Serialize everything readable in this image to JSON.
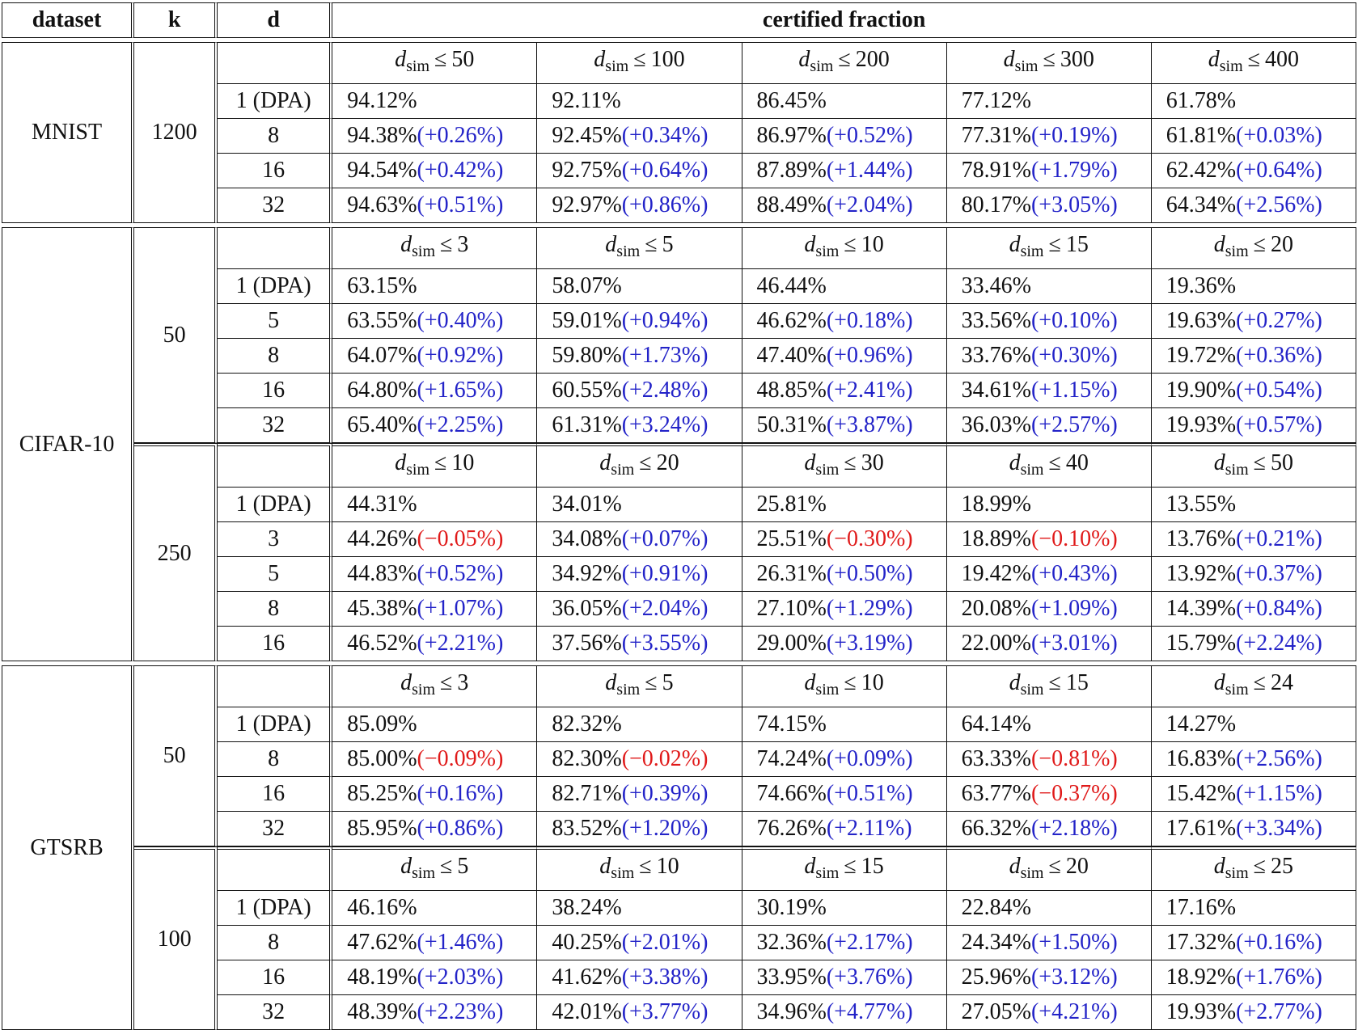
{
  "header": {
    "dataset": "dataset",
    "k": "k",
    "d": "d",
    "certified_fraction": "certified fraction"
  },
  "dsim_symbol": {
    "var": "d",
    "sub": "sim",
    "leq": "≤"
  },
  "colors": {
    "positive": "#2323c8",
    "negative": "#e01a1a",
    "text": "#111111"
  },
  "blocks": [
    {
      "dataset": "MNIST",
      "groups": [
        {
          "k": "1200",
          "thresholds": [
            "50",
            "100",
            "200",
            "300",
            "400"
          ],
          "rows": [
            {
              "d": "1 (DPA)",
              "cells": [
                {
                  "v": "94.12%"
                },
                {
                  "v": "92.11%"
                },
                {
                  "v": "86.45%"
                },
                {
                  "v": "77.12%"
                },
                {
                  "v": "61.78%"
                }
              ]
            },
            {
              "d": "8",
              "cells": [
                {
                  "v": "94.38%",
                  "delta": "(+0.26%)",
                  "sign": "pos"
                },
                {
                  "v": "92.45%",
                  "delta": "(+0.34%)",
                  "sign": "pos"
                },
                {
                  "v": "86.97%",
                  "delta": "(+0.52%)",
                  "sign": "pos"
                },
                {
                  "v": "77.31%",
                  "delta": "(+0.19%)",
                  "sign": "pos"
                },
                {
                  "v": "61.81%",
                  "delta": "(+0.03%)",
                  "sign": "pos"
                }
              ]
            },
            {
              "d": "16",
              "cells": [
                {
                  "v": "94.54%",
                  "delta": "(+0.42%)",
                  "sign": "pos"
                },
                {
                  "v": "92.75%",
                  "delta": "(+0.64%)",
                  "sign": "pos"
                },
                {
                  "v": "87.89%",
                  "delta": "(+1.44%)",
                  "sign": "pos"
                },
                {
                  "v": "78.91%",
                  "delta": "(+1.79%)",
                  "sign": "pos"
                },
                {
                  "v": "62.42%",
                  "delta": "(+0.64%)",
                  "sign": "pos"
                }
              ]
            },
            {
              "d": "32",
              "cells": [
                {
                  "v": "94.63%",
                  "delta": "(+0.51%)",
                  "sign": "pos"
                },
                {
                  "v": "92.97%",
                  "delta": "(+0.86%)",
                  "sign": "pos"
                },
                {
                  "v": "88.49%",
                  "delta": "(+2.04%)",
                  "sign": "pos"
                },
                {
                  "v": "80.17%",
                  "delta": "(+3.05%)",
                  "sign": "pos"
                },
                {
                  "v": "64.34%",
                  "delta": "(+2.56%)",
                  "sign": "pos"
                }
              ]
            }
          ]
        }
      ]
    },
    {
      "dataset": "CIFAR-10",
      "groups": [
        {
          "k": "50",
          "thresholds": [
            "3",
            "5",
            "10",
            "15",
            "20"
          ],
          "rows": [
            {
              "d": "1 (DPA)",
              "cells": [
                {
                  "v": "63.15%"
                },
                {
                  "v": "58.07%"
                },
                {
                  "v": "46.44%"
                },
                {
                  "v": "33.46%"
                },
                {
                  "v": "19.36%"
                }
              ]
            },
            {
              "d": "5",
              "cells": [
                {
                  "v": "63.55%",
                  "delta": "(+0.40%)",
                  "sign": "pos"
                },
                {
                  "v": "59.01%",
                  "delta": "(+0.94%)",
                  "sign": "pos"
                },
                {
                  "v": "46.62%",
                  "delta": "(+0.18%)",
                  "sign": "pos"
                },
                {
                  "v": "33.56%",
                  "delta": "(+0.10%)",
                  "sign": "pos"
                },
                {
                  "v": "19.63%",
                  "delta": "(+0.27%)",
                  "sign": "pos"
                }
              ]
            },
            {
              "d": "8",
              "cells": [
                {
                  "v": "64.07%",
                  "delta": "(+0.92%)",
                  "sign": "pos"
                },
                {
                  "v": "59.80%",
                  "delta": "(+1.73%)",
                  "sign": "pos"
                },
                {
                  "v": "47.40%",
                  "delta": "(+0.96%)",
                  "sign": "pos"
                },
                {
                  "v": "33.76%",
                  "delta": "(+0.30%)",
                  "sign": "pos"
                },
                {
                  "v": "19.72%",
                  "delta": "(+0.36%)",
                  "sign": "pos"
                }
              ]
            },
            {
              "d": "16",
              "cells": [
                {
                  "v": "64.80%",
                  "delta": "(+1.65%)",
                  "sign": "pos"
                },
                {
                  "v": "60.55%",
                  "delta": "(+2.48%)",
                  "sign": "pos"
                },
                {
                  "v": "48.85%",
                  "delta": "(+2.41%)",
                  "sign": "pos"
                },
                {
                  "v": "34.61%",
                  "delta": "(+1.15%)",
                  "sign": "pos"
                },
                {
                  "v": "19.90%",
                  "delta": "(+0.54%)",
                  "sign": "pos"
                }
              ]
            },
            {
              "d": "32",
              "cells": [
                {
                  "v": "65.40%",
                  "delta": "(+2.25%)",
                  "sign": "pos"
                },
                {
                  "v": "61.31%",
                  "delta": "(+3.24%)",
                  "sign": "pos"
                },
                {
                  "v": "50.31%",
                  "delta": "(+3.87%)",
                  "sign": "pos"
                },
                {
                  "v": "36.03%",
                  "delta": "(+2.57%)",
                  "sign": "pos"
                },
                {
                  "v": "19.93%",
                  "delta": "(+0.57%)",
                  "sign": "pos"
                }
              ]
            }
          ]
        },
        {
          "k": "250",
          "thresholds": [
            "10",
            "20",
            "30",
            "40",
            "50"
          ],
          "rows": [
            {
              "d": "1 (DPA)",
              "cells": [
                {
                  "v": "44.31%"
                },
                {
                  "v": "34.01%"
                },
                {
                  "v": "25.81%"
                },
                {
                  "v": "18.99%"
                },
                {
                  "v": "13.55%"
                }
              ]
            },
            {
              "d": "3",
              "cells": [
                {
                  "v": "44.26%",
                  "delta": "(−0.05%)",
                  "sign": "neg"
                },
                {
                  "v": "34.08%",
                  "delta": "(+0.07%)",
                  "sign": "pos"
                },
                {
                  "v": "25.51%",
                  "delta": "(−0.30%)",
                  "sign": "neg"
                },
                {
                  "v": "18.89%",
                  "delta": "(−0.10%)",
                  "sign": "neg"
                },
                {
                  "v": "13.76%",
                  "delta": "(+0.21%)",
                  "sign": "pos"
                }
              ]
            },
            {
              "d": "5",
              "cells": [
                {
                  "v": "44.83%",
                  "delta": "(+0.52%)",
                  "sign": "pos"
                },
                {
                  "v": "34.92%",
                  "delta": "(+0.91%)",
                  "sign": "pos"
                },
                {
                  "v": "26.31%",
                  "delta": "(+0.50%)",
                  "sign": "pos"
                },
                {
                  "v": "19.42%",
                  "delta": "(+0.43%)",
                  "sign": "pos"
                },
                {
                  "v": "13.92%",
                  "delta": "(+0.37%)",
                  "sign": "pos"
                }
              ]
            },
            {
              "d": "8",
              "cells": [
                {
                  "v": "45.38%",
                  "delta": "(+1.07%)",
                  "sign": "pos"
                },
                {
                  "v": "36.05%",
                  "delta": "(+2.04%)",
                  "sign": "pos"
                },
                {
                  "v": "27.10%",
                  "delta": "(+1.29%)",
                  "sign": "pos"
                },
                {
                  "v": "20.08%",
                  "delta": "(+1.09%)",
                  "sign": "pos"
                },
                {
                  "v": "14.39%",
                  "delta": "(+0.84%)",
                  "sign": "pos"
                }
              ]
            },
            {
              "d": "16",
              "cells": [
                {
                  "v": "46.52%",
                  "delta": "(+2.21%)",
                  "sign": "pos"
                },
                {
                  "v": "37.56%",
                  "delta": "(+3.55%)",
                  "sign": "pos"
                },
                {
                  "v": "29.00%",
                  "delta": "(+3.19%)",
                  "sign": "pos"
                },
                {
                  "v": "22.00%",
                  "delta": "(+3.01%)",
                  "sign": "pos"
                },
                {
                  "v": "15.79%",
                  "delta": "(+2.24%)",
                  "sign": "pos"
                }
              ]
            }
          ]
        }
      ]
    },
    {
      "dataset": "GTSRB",
      "groups": [
        {
          "k": "50",
          "thresholds": [
            "3",
            "5",
            "10",
            "15",
            "24"
          ],
          "rows": [
            {
              "d": "1 (DPA)",
              "cells": [
                {
                  "v": "85.09%"
                },
                {
                  "v": "82.32%"
                },
                {
                  "v": "74.15%"
                },
                {
                  "v": "64.14%"
                },
                {
                  "v": "14.27%"
                }
              ]
            },
            {
              "d": "8",
              "cells": [
                {
                  "v": "85.00%",
                  "delta": "(−0.09%)",
                  "sign": "neg"
                },
                {
                  "v": "82.30%",
                  "delta": "(−0.02%)",
                  "sign": "neg"
                },
                {
                  "v": "74.24%",
                  "delta": "(+0.09%)",
                  "sign": "pos"
                },
                {
                  "v": "63.33%",
                  "delta": "(−0.81%)",
                  "sign": "neg"
                },
                {
                  "v": "16.83%",
                  "delta": "(+2.56%)",
                  "sign": "pos"
                }
              ]
            },
            {
              "d": "16",
              "cells": [
                {
                  "v": "85.25%",
                  "delta": "(+0.16%)",
                  "sign": "pos"
                },
                {
                  "v": "82.71%",
                  "delta": "(+0.39%)",
                  "sign": "pos"
                },
                {
                  "v": "74.66%",
                  "delta": "(+0.51%)",
                  "sign": "pos"
                },
                {
                  "v": "63.77%",
                  "delta": "(−0.37%)",
                  "sign": "neg"
                },
                {
                  "v": "15.42%",
                  "delta": "(+1.15%)",
                  "sign": "pos"
                }
              ]
            },
            {
              "d": "32",
              "cells": [
                {
                  "v": "85.95%",
                  "delta": "(+0.86%)",
                  "sign": "pos"
                },
                {
                  "v": "83.52%",
                  "delta": "(+1.20%)",
                  "sign": "pos"
                },
                {
                  "v": "76.26%",
                  "delta": "(+2.11%)",
                  "sign": "pos"
                },
                {
                  "v": "66.32%",
                  "delta": "(+2.18%)",
                  "sign": "pos"
                },
                {
                  "v": "17.61%",
                  "delta": "(+3.34%)",
                  "sign": "pos"
                }
              ]
            }
          ]
        },
        {
          "k": "100",
          "thresholds": [
            "5",
            "10",
            "15",
            "20",
            "25"
          ],
          "rows": [
            {
              "d": "1 (DPA)",
              "cells": [
                {
                  "v": "46.16%"
                },
                {
                  "v": "38.24%"
                },
                {
                  "v": "30.19%"
                },
                {
                  "v": "22.84%"
                },
                {
                  "v": "17.16%"
                }
              ]
            },
            {
              "d": "8",
              "cells": [
                {
                  "v": "47.62%",
                  "delta": "(+1.46%)",
                  "sign": "pos"
                },
                {
                  "v": "40.25%",
                  "delta": "(+2.01%)",
                  "sign": "pos"
                },
                {
                  "v": "32.36%",
                  "delta": "(+2.17%)",
                  "sign": "pos"
                },
                {
                  "v": "24.34%",
                  "delta": "(+1.50%)",
                  "sign": "pos"
                },
                {
                  "v": "17.32%",
                  "delta": "(+0.16%)",
                  "sign": "pos"
                }
              ]
            },
            {
              "d": "16",
              "cells": [
                {
                  "v": "48.19%",
                  "delta": "(+2.03%)",
                  "sign": "pos"
                },
                {
                  "v": "41.62%",
                  "delta": "(+3.38%)",
                  "sign": "pos"
                },
                {
                  "v": "33.95%",
                  "delta": "(+3.76%)",
                  "sign": "pos"
                },
                {
                  "v": "25.96%",
                  "delta": "(+3.12%)",
                  "sign": "pos"
                },
                {
                  "v": "18.92%",
                  "delta": "(+1.76%)",
                  "sign": "pos"
                }
              ]
            },
            {
              "d": "32",
              "cells": [
                {
                  "v": "48.39%",
                  "delta": "(+2.23%)",
                  "sign": "pos"
                },
                {
                  "v": "42.01%",
                  "delta": "(+3.77%)",
                  "sign": "pos"
                },
                {
                  "v": "34.96%",
                  "delta": "(+4.77%)",
                  "sign": "pos"
                },
                {
                  "v": "27.05%",
                  "delta": "(+4.21%)",
                  "sign": "pos"
                },
                {
                  "v": "19.93%",
                  "delta": "(+2.77%)",
                  "sign": "pos"
                }
              ]
            }
          ]
        }
      ]
    }
  ]
}
